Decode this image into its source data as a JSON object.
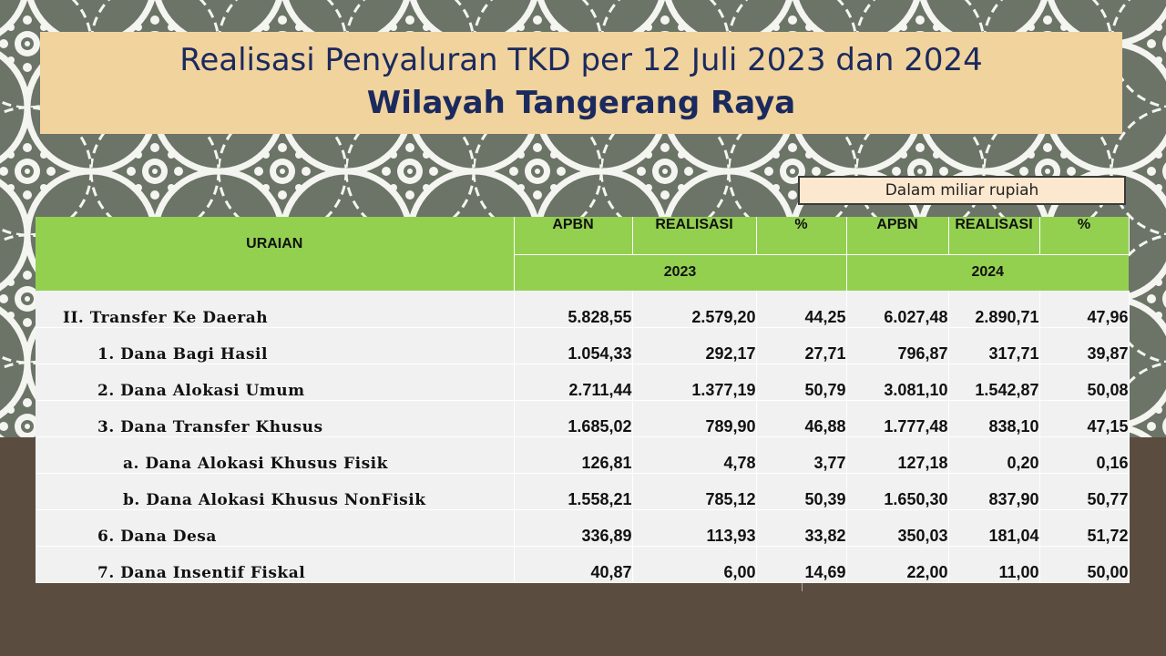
{
  "title": {
    "line1": "Realisasi Penyaluran TKD per 12 Juli 2023 dan 2024",
    "line2": "Wilayah Tangerang Raya"
  },
  "unit_note": "Dalam miliar rupiah",
  "table": {
    "headers": {
      "uraian": "URAIAN",
      "apbn_2023": "APBN",
      "realisasi_2023": "REALISASI",
      "pct_2023": "%",
      "apbn_2024": "APBN",
      "realisasi_2024": "REALISASI",
      "pct_2024": "%",
      "year_2023": "2023",
      "year_2024": "2024"
    },
    "rows": [
      {
        "label": "II. Transfer Ke Daerah",
        "apbn_2023": "5.828,55",
        "realisasi_2023": "2.579,20",
        "pct_2023": "44,25",
        "apbn_2024": "6.027,48",
        "realisasi_2024": "2.890,71",
        "pct_2024": "47,96"
      },
      {
        "label": "1. Dana Bagi Hasil",
        "apbn_2023": "1.054,33",
        "realisasi_2023": "292,17",
        "pct_2023": "27,71",
        "apbn_2024": "796,87",
        "realisasi_2024": "317,71",
        "pct_2024": "39,87"
      },
      {
        "label": "2. Dana Alokasi Umum",
        "apbn_2023": "2.711,44",
        "realisasi_2023": "1.377,19",
        "pct_2023": "50,79",
        "apbn_2024": "3.081,10",
        "realisasi_2024": "1.542,87",
        "pct_2024": "50,08"
      },
      {
        "label": "3. Dana Transfer Khusus",
        "apbn_2023": "1.685,02",
        "realisasi_2023": "789,90",
        "pct_2023": "46,88",
        "apbn_2024": "1.777,48",
        "realisasi_2024": "838,10",
        "pct_2024": "47,15"
      },
      {
        "label": "a. Dana Alokasi Khusus Fisik",
        "apbn_2023": "126,81",
        "realisasi_2023": "4,78",
        "pct_2023": "3,77",
        "apbn_2024": "127,18",
        "realisasi_2024": "0,20",
        "pct_2024": "0,16"
      },
      {
        "label": "b. Dana Alokasi Khusus NonFisik",
        "apbn_2023": "1.558,21",
        "realisasi_2023": "785,12",
        "pct_2023": "50,39",
        "apbn_2024": "1.650,30",
        "realisasi_2024": "837,90",
        "pct_2024": "50,77"
      },
      {
        "label": "6. Dana Desa",
        "apbn_2023": "336,89",
        "realisasi_2023": "113,93",
        "pct_2023": "33,82",
        "apbn_2024": "350,03",
        "realisasi_2024": "181,04",
        "pct_2024": "51,72"
      },
      {
        "label": "7. Dana Insentif Fiskal",
        "apbn_2023": "40,87",
        "realisasi_2023": "6,00",
        "pct_2023": "14,69",
        "apbn_2024": "22,00",
        "realisasi_2024": "11,00",
        "pct_2024": "50,00"
      }
    ]
  }
}
